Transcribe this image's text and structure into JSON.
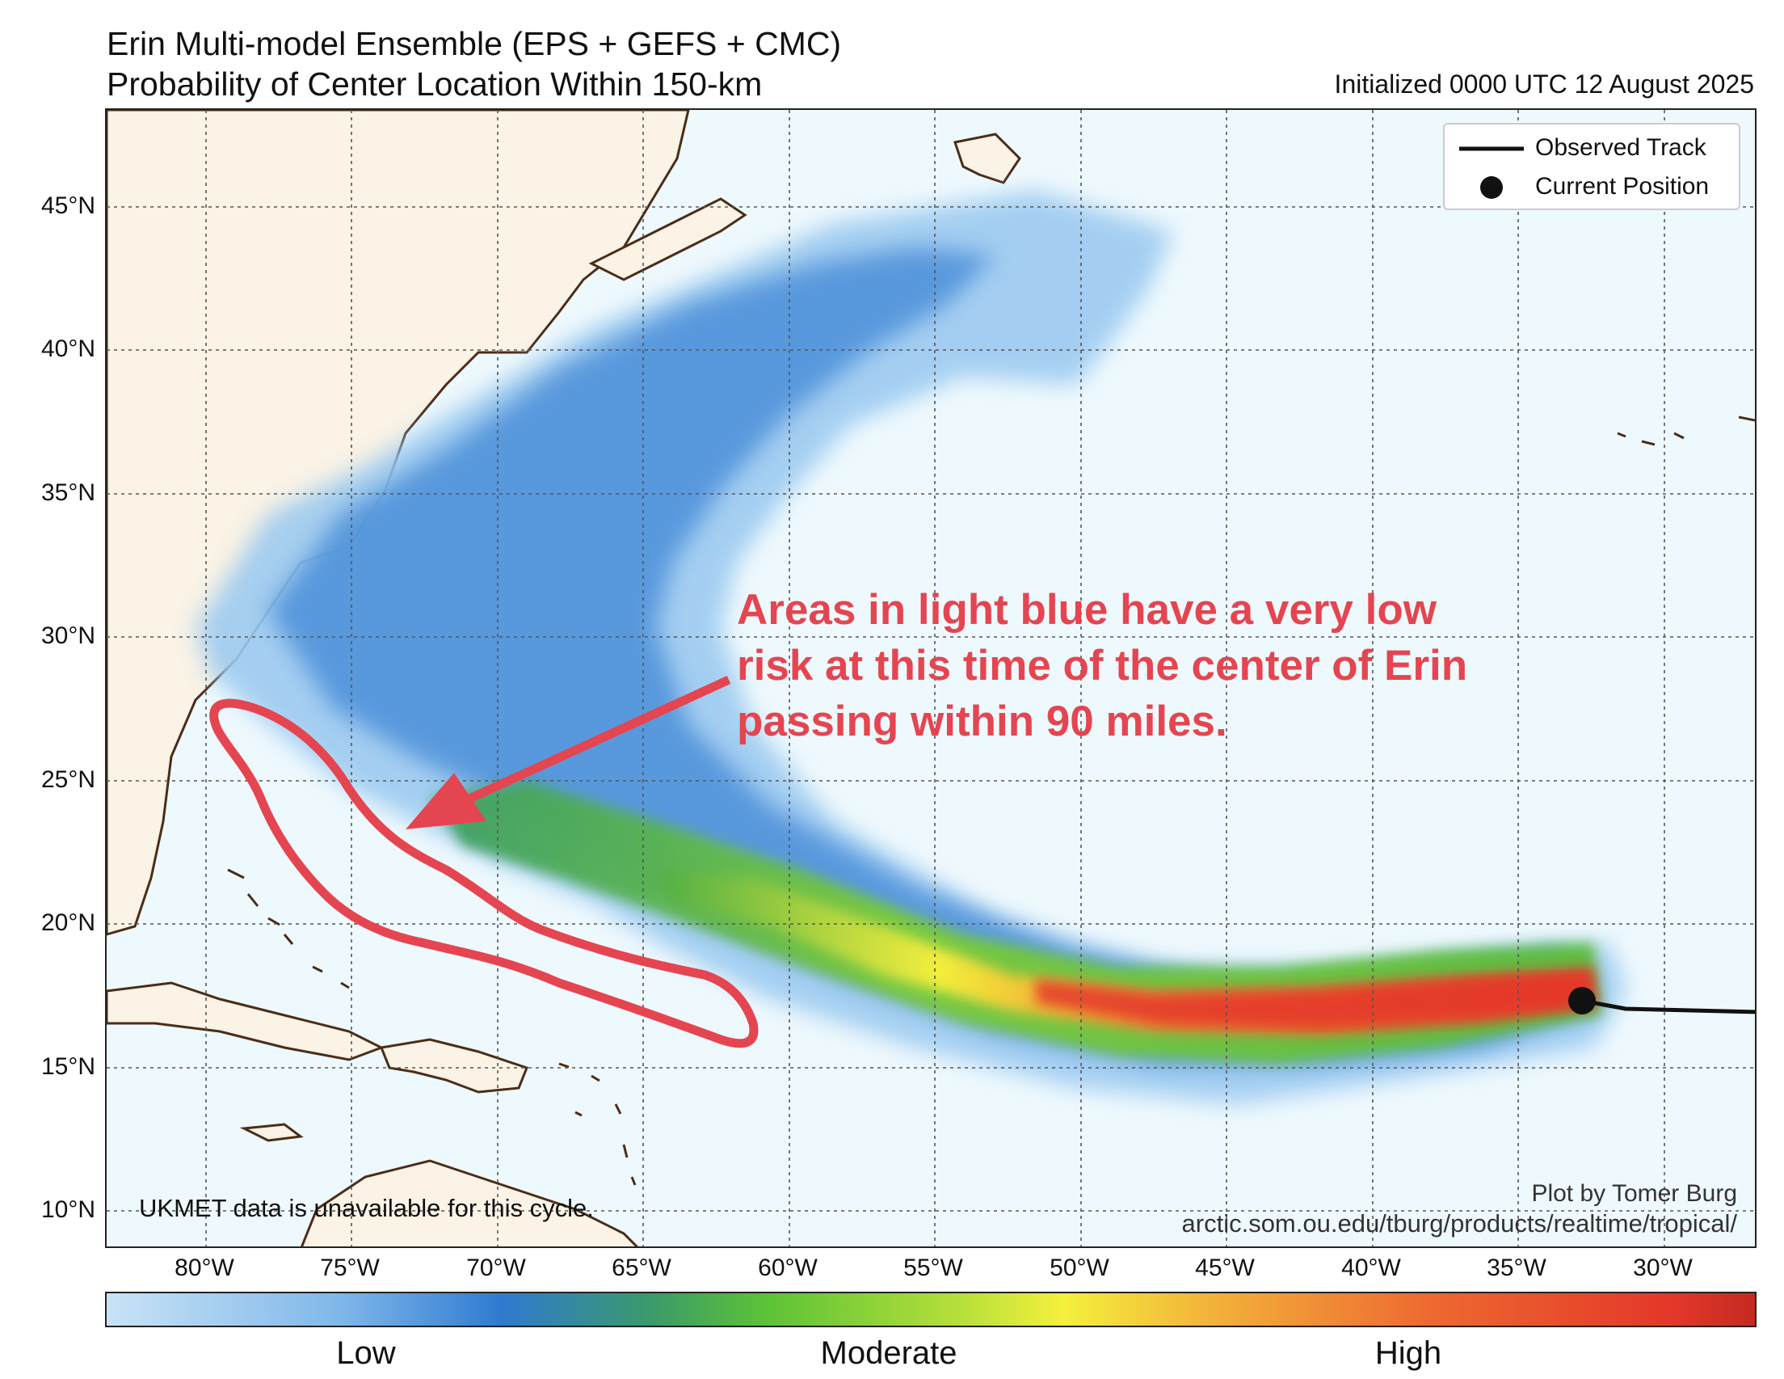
{
  "header": {
    "title_line1": "Erin Multi-model Ensemble (EPS + GEFS + CMC)",
    "title_line2": "Probability of Center Location Within 150-km",
    "initialized": "Initialized 0000 UTC 12 August 2025"
  },
  "map": {
    "lat_labels": [
      "45°N",
      "40°N",
      "35°N",
      "30°N",
      "25°N",
      "20°N",
      "15°N",
      "10°N"
    ],
    "lon_labels": [
      "80°W",
      "75°W",
      "70°W",
      "65°W",
      "60°W",
      "55°W",
      "50°W",
      "45°W",
      "40°W",
      "35°W",
      "30°W"
    ],
    "colors": {
      "ocean": "#eef9fd",
      "land": "#faf3e6",
      "coast": "#4a2d18",
      "annotation": "#e54550",
      "track": "#111111"
    }
  },
  "legend": {
    "observed_track": "Observed Track",
    "current_position": "Current Position"
  },
  "notes": {
    "ukmet": "UKMET data is unavailable for this cycle.",
    "credit_name": "Plot by Tomer Burg",
    "credit_url": "arctic.som.ou.edu/tburg/products/realtime/tropical/"
  },
  "annotation": {
    "line1": "Areas in light blue have a very low",
    "line2": "risk at this time of the center of Erin",
    "line3": "passing within 90 miles."
  },
  "colorbar": {
    "low": "Low",
    "moderate": "Moderate",
    "high": "High"
  }
}
